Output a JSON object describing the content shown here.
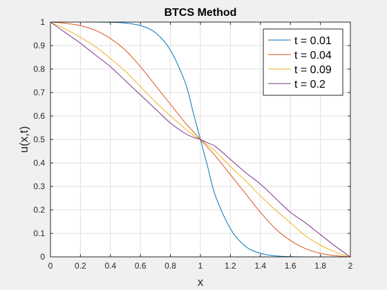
{
  "chart_data": {
    "type": "line",
    "title": "BTCS Method",
    "xlabel": "x",
    "ylabel": "u(x,t)",
    "xlim": [
      0,
      2
    ],
    "ylim": [
      0,
      1
    ],
    "xticks": [
      "0",
      "0.2",
      "0.4",
      "0.6",
      "0.8",
      "1",
      "1.2",
      "1.4",
      "1.6",
      "1.8",
      "2"
    ],
    "yticks": [
      "0",
      "0.1",
      "0.2",
      "0.3",
      "0.4",
      "0.5",
      "0.6",
      "0.7",
      "0.8",
      "0.9",
      "1"
    ],
    "grid": true,
    "legend_position": "top-right",
    "x": [
      0,
      0.1,
      0.2,
      0.3,
      0.4,
      0.5,
      0.6,
      0.7,
      0.8,
      0.9,
      0.95,
      1.0,
      1.05,
      1.1,
      1.2,
      1.3,
      1.4,
      1.5,
      1.6,
      1.7,
      1.8,
      1.9,
      2.0
    ],
    "series": [
      {
        "name": "t = 0.01",
        "color": "#0072BD",
        "values": [
          1.0,
          1.0,
          1.0,
          1.0,
          0.999,
          0.996,
          0.985,
          0.955,
          0.88,
          0.74,
          0.62,
          0.5,
          0.38,
          0.26,
          0.12,
          0.045,
          0.015,
          0.004,
          0.001,
          0.0,
          0.0,
          0.0,
          0.0
        ]
      },
      {
        "name": "t = 0.04",
        "color": "#D95319",
        "values": [
          1.0,
          0.995,
          0.985,
          0.965,
          0.93,
          0.88,
          0.81,
          0.73,
          0.65,
          0.57,
          0.535,
          0.5,
          0.465,
          0.43,
          0.35,
          0.27,
          0.19,
          0.12,
          0.07,
          0.035,
          0.015,
          0.005,
          0.0
        ]
      },
      {
        "name": "t = 0.09",
        "color": "#EDB120",
        "values": [
          1.0,
          0.97,
          0.935,
          0.895,
          0.845,
          0.79,
          0.725,
          0.66,
          0.6,
          0.545,
          0.52,
          0.5,
          0.475,
          0.45,
          0.385,
          0.325,
          0.26,
          0.2,
          0.145,
          0.09,
          0.05,
          0.02,
          0.0
        ]
      },
      {
        "name": "t = 0.2",
        "color": "#7E2F8E",
        "values": [
          1.0,
          0.955,
          0.91,
          0.86,
          0.81,
          0.75,
          0.69,
          0.63,
          0.57,
          0.525,
          0.51,
          0.5,
          0.485,
          0.47,
          0.415,
          0.36,
          0.31,
          0.25,
          0.19,
          0.145,
          0.095,
          0.045,
          0.0
        ]
      }
    ]
  }
}
